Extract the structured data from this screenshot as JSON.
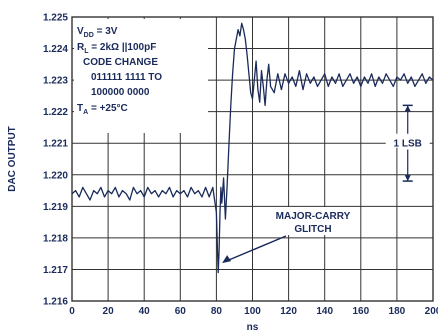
{
  "chart_data": {
    "type": "line",
    "xlabel": "ns",
    "ylabel": "DAC OUTPUT",
    "xlim": [
      0,
      200
    ],
    "ylim": [
      1.216,
      1.225
    ],
    "x_ticks": [
      "0",
      "20",
      "40",
      "60",
      "80",
      "100",
      "120",
      "140",
      "160",
      "180",
      "200"
    ],
    "y_ticks": [
      "1.216",
      "1.217",
      "1.218",
      "1.219",
      "1.220",
      "1.221",
      "1.222",
      "1.223",
      "1.224",
      "1.225"
    ],
    "grid": true,
    "conditions": {
      "vdd": "V",
      "vdd_sub": "DD",
      "vdd_val": " = 3V",
      "rl": "R",
      "rl_sub": "L",
      "rl_val": " = 2kΩ ||100pF",
      "code_change": "CODE CHANGE",
      "code_from": "011111 1111 TO",
      "code_to": "100000 0000",
      "ta": "T",
      "ta_sub": "A",
      "ta_val": " = +25°C"
    },
    "lsb_label": "1 LSB",
    "glitch_label_1": "MAJOR-CARRY",
    "glitch_label_2": "GLITCH",
    "series": [
      {
        "x": [
          0,
          2,
          4,
          6,
          8,
          10,
          12,
          14,
          16,
          18,
          20,
          22,
          24,
          26,
          28,
          30,
          32,
          34,
          36,
          38,
          40,
          42,
          44,
          46,
          48,
          50,
          52,
          54,
          56,
          58,
          60,
          62,
          64,
          66,
          68,
          70,
          72,
          74,
          76,
          78,
          79,
          80,
          80.5,
          81,
          81.5,
          82,
          82.5,
          83,
          84,
          85,
          86,
          87,
          88,
          89,
          90,
          91,
          92,
          93,
          94,
          95,
          96,
          97,
          98,
          99,
          100,
          101,
          102,
          103,
          104,
          105,
          106,
          107,
          108,
          109,
          110,
          112,
          114,
          116,
          118,
          120,
          122,
          124,
          126,
          128,
          130,
          132,
          134,
          136,
          138,
          140,
          142,
          144,
          146,
          148,
          150,
          152,
          154,
          156,
          158,
          160,
          162,
          164,
          166,
          168,
          170,
          172,
          174,
          176,
          178,
          180,
          182,
          184,
          186,
          188,
          190,
          192,
          194,
          196,
          198,
          200
        ],
        "y": [
          1.2194,
          1.2195,
          1.2193,
          1.2196,
          1.2194,
          1.2192,
          1.2195,
          1.2194,
          1.2196,
          1.2193,
          1.2195,
          1.2194,
          1.2196,
          1.2193,
          1.2195,
          1.2194,
          1.2192,
          1.2196,
          1.2194,
          1.2195,
          1.2193,
          1.2196,
          1.2194,
          1.2195,
          1.2193,
          1.2195,
          1.2194,
          1.2196,
          1.2193,
          1.2195,
          1.2194,
          1.2195,
          1.2193,
          1.2196,
          1.2194,
          1.2195,
          1.2193,
          1.2196,
          1.2193,
          1.2196,
          1.2192,
          1.2188,
          1.2178,
          1.2169,
          1.2176,
          1.2188,
          1.2196,
          1.2191,
          1.2199,
          1.2186,
          1.2197,
          1.221,
          1.2222,
          1.2232,
          1.224,
          1.2243,
          1.2246,
          1.2244,
          1.2248,
          1.2246,
          1.2243,
          1.2238,
          1.2232,
          1.2226,
          1.2224,
          1.223,
          1.2236,
          1.2227,
          1.2223,
          1.2233,
          1.2228,
          1.2222,
          1.223,
          1.2235,
          1.2228,
          1.2226,
          1.2232,
          1.2227,
          1.2232,
          1.2229,
          1.2231,
          1.2228,
          1.2233,
          1.2227,
          1.2232,
          1.2229,
          1.2231,
          1.2228,
          1.223,
          1.2232,
          1.2228,
          1.2231,
          1.2229,
          1.2232,
          1.2228,
          1.223,
          1.2232,
          1.2229,
          1.2231,
          1.2228,
          1.2231,
          1.2229,
          1.2232,
          1.2228,
          1.2231,
          1.2229,
          1.2232,
          1.223,
          1.2228,
          1.2231,
          1.223,
          1.2232,
          1.2229,
          1.2231,
          1.2228,
          1.223,
          1.2232,
          1.2229,
          1.2231,
          1.223
        ]
      }
    ]
  },
  "colors": {
    "line": "#1a2a5a",
    "grid": "#333333",
    "background": "#ffffff"
  }
}
